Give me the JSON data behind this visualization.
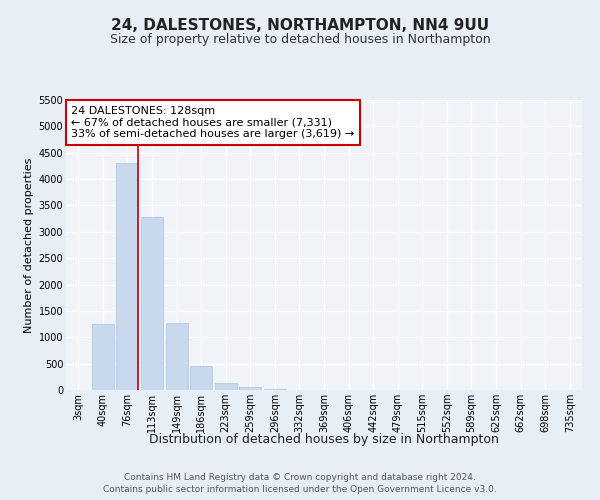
{
  "title": "24, DALESTONES, NORTHAMPTON, NN4 9UU",
  "subtitle": "Size of property relative to detached houses in Northampton",
  "xlabel": "Distribution of detached houses by size in Northampton",
  "ylabel": "Number of detached properties",
  "bar_labels": [
    "3sqm",
    "40sqm",
    "76sqm",
    "113sqm",
    "149sqm",
    "186sqm",
    "223sqm",
    "259sqm",
    "296sqm",
    "332sqm",
    "369sqm",
    "406sqm",
    "442sqm",
    "479sqm",
    "515sqm",
    "552sqm",
    "589sqm",
    "625sqm",
    "662sqm",
    "698sqm",
    "735sqm"
  ],
  "bar_values": [
    0,
    1250,
    4300,
    3280,
    1270,
    460,
    130,
    50,
    20,
    5,
    2,
    1,
    0,
    0,
    0,
    0,
    0,
    0,
    0,
    0,
    0
  ],
  "bar_color": "#c8d9ed",
  "bar_edge_color": "#aac4de",
  "annotation_box_text": "24 DALESTONES: 128sqm\n← 67% of detached houses are smaller (7,331)\n33% of semi-detached houses are larger (3,619) →",
  "annotation_box_color": "#ffffff",
  "annotation_box_edge_color": "#cc0000",
  "ylim": [
    0,
    5500
  ],
  "yticks": [
    0,
    500,
    1000,
    1500,
    2000,
    2500,
    3000,
    3500,
    4000,
    4500,
    5000,
    5500
  ],
  "bg_color": "#e8eef5",
  "plot_bg_color": "#f0f4f8",
  "grid_color": "#ffffff",
  "footer_text": "Contains HM Land Registry data © Crown copyright and database right 2024.\nContains public sector information licensed under the Open Government Licence v3.0.",
  "title_fontsize": 11,
  "subtitle_fontsize": 9,
  "xlabel_fontsize": 9,
  "ylabel_fontsize": 8,
  "tick_fontsize": 7,
  "annotation_fontsize": 8,
  "footer_fontsize": 6.5
}
